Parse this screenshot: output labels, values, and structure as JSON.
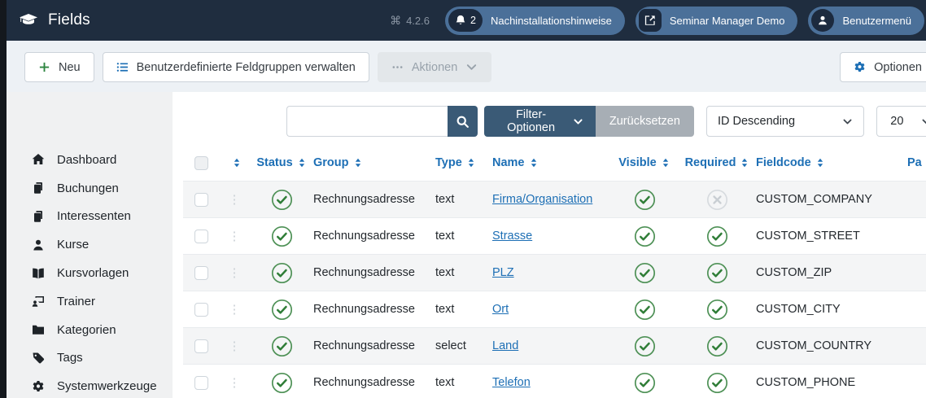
{
  "topbar": {
    "title": "Fields",
    "version": "4.2.6",
    "notifications": {
      "count": "2",
      "label": "Nachinstallationshinweise"
    },
    "site_link_label": "Seminar Manager Demo",
    "user_menu_label": "Benutzermenü"
  },
  "toolbar": {
    "new_label": "Neu",
    "manage_groups_label": "Benutzerdefinierte Feldgruppen verwalten",
    "actions_label": "Aktionen",
    "options_label": "Optionen"
  },
  "sidebar": {
    "items": [
      {
        "icon": "home-icon",
        "label": "Dashboard"
      },
      {
        "icon": "copy-icon",
        "label": "Buchungen"
      },
      {
        "icon": "copy-icon",
        "label": "Interessenten"
      },
      {
        "icon": "user-icon",
        "label": "Kurse"
      },
      {
        "icon": "book-open-icon",
        "label": "Kursvorlagen"
      },
      {
        "icon": "presenter-icon",
        "label": "Trainer"
      },
      {
        "icon": "folder-icon",
        "label": "Kategorien"
      },
      {
        "icon": "tag-icon",
        "label": "Tags"
      },
      {
        "icon": "gear-icon",
        "label": "Systemwerkzeuge"
      }
    ]
  },
  "filters": {
    "search_value": "",
    "search_placeholder": "",
    "filter_options_label": "Filter-Optionen",
    "reset_label": "Zurücksetzen",
    "sort_value": "ID Descending",
    "limit_value": "20"
  },
  "table": {
    "columns": [
      {
        "key": "select",
        "label": "",
        "sortable": false
      },
      {
        "key": "ordering",
        "label": "",
        "sortable": true
      },
      {
        "key": "status",
        "label": "Status",
        "sortable": true
      },
      {
        "key": "group",
        "label": "Group",
        "sortable": true
      },
      {
        "key": "type",
        "label": "Type",
        "sortable": true
      },
      {
        "key": "name",
        "label": "Name",
        "sortable": true
      },
      {
        "key": "visible",
        "label": "Visible",
        "sortable": true
      },
      {
        "key": "required",
        "label": "Required",
        "sortable": true
      },
      {
        "key": "fieldcode",
        "label": "Fieldcode",
        "sortable": true
      },
      {
        "key": "params",
        "label": "Pa",
        "sortable": false
      }
    ],
    "rows": [
      {
        "status": "published",
        "group": "Rechnungsadresse",
        "type": "text",
        "name": "Firma/Organisation",
        "visible": "yes",
        "required": "no",
        "fieldcode": "CUSTOM_COMPANY"
      },
      {
        "status": "published",
        "group": "Rechnungsadresse",
        "type": "text",
        "name": "Strasse",
        "visible": "yes",
        "required": "yes",
        "fieldcode": "CUSTOM_STREET"
      },
      {
        "status": "published",
        "group": "Rechnungsadresse",
        "type": "text",
        "name": "PLZ",
        "visible": "yes",
        "required": "yes",
        "fieldcode": "CUSTOM_ZIP"
      },
      {
        "status": "published",
        "group": "Rechnungsadresse",
        "type": "text",
        "name": "Ort",
        "visible": "yes",
        "required": "yes",
        "fieldcode": "CUSTOM_CITY"
      },
      {
        "status": "published",
        "group": "Rechnungsadresse",
        "type": "select",
        "name": "Land",
        "visible": "yes",
        "required": "yes",
        "fieldcode": "CUSTOM_COUNTRY"
      },
      {
        "status": "published",
        "group": "Rechnungsadresse",
        "type": "text",
        "name": "Telefon",
        "visible": "yes",
        "required": "yes",
        "fieldcode": "CUSTOM_PHONE"
      }
    ]
  },
  "colors": {
    "topbar_bg": "#1f2d3f",
    "pill_bg": "#4b7099",
    "accent_blue": "#1d6fb5",
    "steel_button": "#3a5a76",
    "success_green": "#3e8a46",
    "disabled_gray": "#a7aeb5",
    "stripe": "#f4f5f6"
  }
}
